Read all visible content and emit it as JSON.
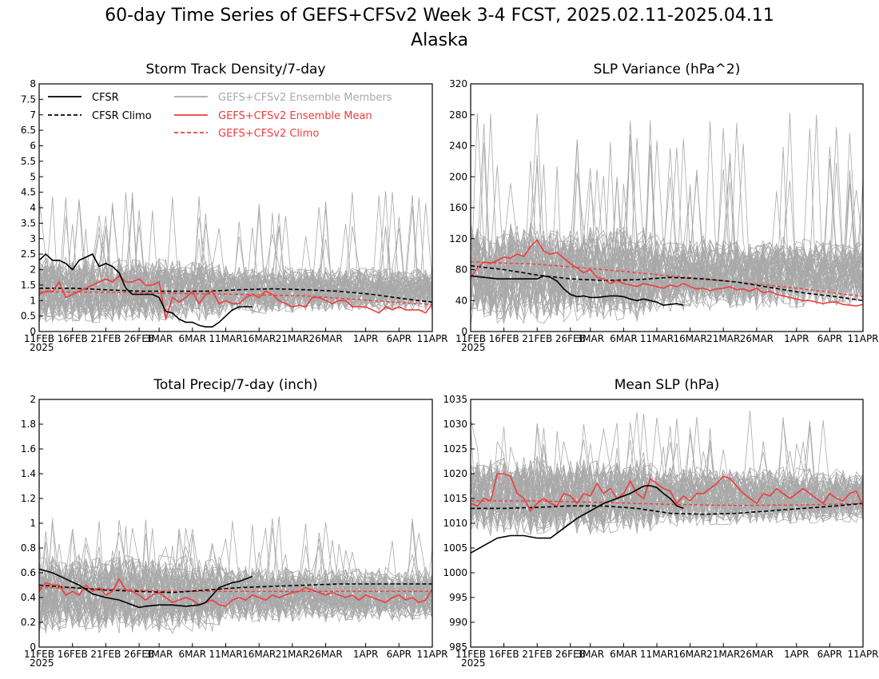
{
  "header": {
    "title": "60-day Time Series of GEFS+CFSv2 Week 3-4 FCST, 2025.02.11-2025.04.11",
    "subtitle": "Alaska"
  },
  "legend": {
    "cfsr": "CFSR",
    "cfsr_climo": "CFSR Climo",
    "members": "GEFS+CFSv2 Ensemble Members",
    "ens_mean": "GEFS+CFSv2 Ensemble Mean",
    "gefs_climo": "GEFS+CFSv2 Climo"
  },
  "colors": {
    "cfsr": "#000000",
    "members": "#a9a9a9",
    "ens_mean": "#f03c3c",
    "gefs_climo": "#f03c3c"
  },
  "x_ticks": [
    "11FEB",
    "16FEB",
    "21FEB",
    "26FEB",
    "3MAR",
    "6MAR",
    "11MAR",
    "16MAR",
    "21MAR",
    "26MAR",
    "1APR",
    "6APR",
    "11APR"
  ],
  "x_tick_days": [
    0,
    5,
    10,
    15,
    18,
    23,
    28,
    33,
    38,
    43,
    49,
    54,
    59
  ],
  "x_year": "2025",
  "chart_data": [
    {
      "type": "line",
      "title": "Storm Track Density/7-day",
      "ylim": [
        0,
        8
      ],
      "yticks": [
        "0",
        "0.5",
        "1",
        "1.5",
        "2",
        "2.5",
        "3",
        "3.5",
        "4",
        "4.5",
        "5",
        "5.5",
        "6",
        "6.5",
        "7",
        "7.5",
        "8"
      ],
      "members_band": {
        "center": 1.35,
        "spread": 0.65,
        "peak": 4.6
      },
      "series": [
        {
          "name": "CFSR",
          "x": [
            0,
            1,
            2,
            3,
            4,
            5,
            6,
            7,
            8,
            9,
            10,
            11,
            12,
            13,
            14,
            15,
            16,
            17,
            18,
            19,
            20,
            21,
            22,
            23,
            24,
            25,
            26,
            27,
            28,
            29,
            30,
            31,
            32
          ],
          "values": [
            2.3,
            2.5,
            2.3,
            2.3,
            2.2,
            2.0,
            2.3,
            2.4,
            2.5,
            2.1,
            2.2,
            2.1,
            1.9,
            1.4,
            1.2,
            1.2,
            1.2,
            1.2,
            1.1,
            0.65,
            0.6,
            0.4,
            0.3,
            0.3,
            0.2,
            0.15,
            0.15,
            0.3,
            0.5,
            0.7,
            0.8,
            0.8,
            0.8
          ]
        },
        {
          "name": "CFSR Climo",
          "x": [
            0,
            5,
            10,
            15,
            20,
            25,
            30,
            35,
            40,
            45,
            50,
            55,
            59
          ],
          "values": [
            1.4,
            1.4,
            1.35,
            1.3,
            1.3,
            1.3,
            1.35,
            1.38,
            1.35,
            1.3,
            1.2,
            1.05,
            0.95
          ]
        },
        {
          "name": "GEFS+CFSv2 Ensemble Mean",
          "x": [
            0,
            1,
            2,
            3,
            4,
            5,
            6,
            7,
            8,
            9,
            10,
            11,
            12,
            13,
            14,
            15,
            16,
            17,
            18,
            19,
            20,
            21,
            22,
            23,
            24,
            25,
            26,
            27,
            28,
            29,
            30,
            31,
            32,
            33,
            34,
            35,
            36,
            37,
            38,
            39,
            40,
            41,
            42,
            43,
            44,
            45,
            46,
            47,
            48,
            49,
            50,
            51,
            52,
            53,
            54,
            55,
            56,
            57,
            58,
            59
          ],
          "values": [
            1.2,
            1.3,
            1.3,
            1.6,
            1.1,
            1.2,
            1.3,
            1.4,
            1.5,
            1.6,
            1.7,
            1.6,
            1.8,
            1.6,
            1.6,
            1.7,
            1.5,
            1.5,
            1.6,
            0.4,
            1.1,
            0.95,
            1.1,
            1.3,
            0.9,
            1.2,
            1.3,
            0.9,
            1.0,
            0.9,
            0.9,
            1.1,
            1.2,
            1.1,
            1.3,
            1.2,
            1.0,
            0.9,
            0.8,
            0.85,
            0.8,
            1.1,
            1.1,
            1.0,
            0.9,
            1.0,
            1.0,
            0.8,
            0.8,
            0.8,
            0.7,
            0.6,
            0.8,
            0.7,
            0.8,
            0.7,
            0.7,
            0.7,
            0.6,
            0.9
          ]
        },
        {
          "name": "GEFS+CFSv2 Climo",
          "x": [
            0,
            10,
            20,
            30,
            40,
            50,
            59
          ],
          "values": [
            1.28,
            1.27,
            1.23,
            1.2,
            1.15,
            1.0,
            0.87
          ]
        }
      ]
    },
    {
      "type": "line",
      "title": "SLP Variance (hPa^2)",
      "ylim": [
        0,
        320
      ],
      "yticks": [
        "0",
        "40",
        "80",
        "120",
        "160",
        "200",
        "240",
        "280",
        "320"
      ],
      "members_band": {
        "center": 75,
        "spread": 40,
        "peak": 283
      },
      "series": [
        {
          "name": "CFSR",
          "x": [
            0,
            2,
            4,
            6,
            8,
            10,
            11,
            12,
            13,
            14,
            15,
            16,
            17,
            18,
            19,
            20,
            21,
            22,
            23,
            24,
            25,
            26,
            27,
            28,
            29,
            30,
            31,
            32
          ],
          "values": [
            72,
            70,
            68,
            68,
            68,
            68,
            72,
            70,
            65,
            55,
            48,
            45,
            46,
            44,
            44,
            45,
            46,
            46,
            45,
            42,
            40,
            42,
            40,
            38,
            34,
            35,
            36,
            34
          ]
        },
        {
          "name": "CFSR Climo",
          "x": [
            0,
            5,
            10,
            15,
            20,
            25,
            30,
            35,
            40,
            45,
            50,
            55,
            59
          ],
          "values": [
            85,
            80,
            73,
            68,
            66,
            67,
            70,
            68,
            64,
            57,
            50,
            45,
            40
          ]
        },
        {
          "name": "GEFS+CFSv2 Ensemble Mean",
          "x": [
            0,
            1,
            2,
            3,
            4,
            5,
            6,
            7,
            8,
            9,
            10,
            11,
            12,
            13,
            14,
            15,
            16,
            17,
            18,
            19,
            20,
            21,
            22,
            23,
            24,
            25,
            26,
            27,
            28,
            29,
            30,
            31,
            32,
            33,
            34,
            35,
            36,
            37,
            38,
            39,
            40,
            41,
            42,
            43,
            44,
            45,
            46,
            47,
            48,
            49,
            50,
            51,
            52,
            53,
            54,
            55,
            56,
            57,
            58,
            59
          ],
          "values": [
            70,
            82,
            90,
            88,
            92,
            96,
            95,
            100,
            97,
            110,
            118,
            104,
            100,
            102,
            95,
            88,
            82,
            76,
            80,
            70,
            68,
            62,
            66,
            62,
            60,
            58,
            62,
            60,
            58,
            56,
            60,
            58,
            62,
            58,
            55,
            56,
            53,
            55,
            56,
            58,
            54,
            55,
            52,
            56,
            50,
            52,
            48,
            46,
            44,
            42,
            40,
            40,
            38,
            36,
            38,
            38,
            35,
            34,
            33,
            35
          ]
        },
        {
          "name": "GEFS+CFSv2 Climo",
          "x": [
            0,
            10,
            20,
            30,
            40,
            50,
            59
          ],
          "values": [
            90,
            87,
            80,
            72,
            64,
            55,
            45
          ]
        }
      ]
    },
    {
      "type": "line",
      "title": "Total Precip/7-day (inch)",
      "ylim": [
        0,
        2
      ],
      "yticks": [
        "0",
        "0.2",
        "0.4",
        "0.6",
        "0.8",
        "1",
        "1.2",
        "1.4",
        "1.6",
        "1.8",
        "2"
      ],
      "members_band": {
        "center": 0.43,
        "spread": 0.2,
        "peak": 1.06
      },
      "series": [
        {
          "name": "CFSR",
          "x": [
            0,
            2,
            4,
            6,
            8,
            10,
            12,
            14,
            15,
            16,
            18,
            20,
            22,
            24,
            25,
            26,
            27,
            28,
            29,
            30,
            31,
            32
          ],
          "values": [
            0.63,
            0.6,
            0.55,
            0.5,
            0.43,
            0.4,
            0.38,
            0.34,
            0.32,
            0.33,
            0.34,
            0.34,
            0.33,
            0.34,
            0.36,
            0.42,
            0.48,
            0.5,
            0.52,
            0.53,
            0.55,
            0.57
          ]
        },
        {
          "name": "CFSR Climo",
          "x": [
            0,
            5,
            10,
            15,
            20,
            25,
            30,
            35,
            40,
            45,
            50,
            55,
            59
          ],
          "values": [
            0.5,
            0.48,
            0.46,
            0.45,
            0.44,
            0.46,
            0.48,
            0.49,
            0.5,
            0.51,
            0.51,
            0.51,
            0.51
          ]
        },
        {
          "name": "GEFS+CFSv2 Ensemble Mean",
          "x": [
            0,
            1,
            2,
            3,
            4,
            5,
            6,
            7,
            8,
            9,
            10,
            11,
            12,
            13,
            14,
            15,
            16,
            17,
            18,
            19,
            20,
            21,
            22,
            23,
            24,
            25,
            26,
            27,
            28,
            29,
            30,
            31,
            32,
            33,
            34,
            35,
            36,
            37,
            38,
            39,
            40,
            41,
            42,
            43,
            44,
            45,
            46,
            47,
            48,
            49,
            50,
            51,
            52,
            53,
            54,
            55,
            56,
            57,
            58,
            59
          ],
          "values": [
            0.45,
            0.52,
            0.5,
            0.5,
            0.42,
            0.45,
            0.42,
            0.5,
            0.45,
            0.48,
            0.42,
            0.45,
            0.55,
            0.46,
            0.45,
            0.42,
            0.38,
            0.42,
            0.44,
            0.4,
            0.36,
            0.38,
            0.4,
            0.38,
            0.34,
            0.36,
            0.38,
            0.34,
            0.33,
            0.38,
            0.4,
            0.38,
            0.42,
            0.4,
            0.38,
            0.42,
            0.4,
            0.42,
            0.44,
            0.45,
            0.48,
            0.46,
            0.44,
            0.42,
            0.44,
            0.42,
            0.4,
            0.42,
            0.38,
            0.42,
            0.4,
            0.38,
            0.36,
            0.4,
            0.42,
            0.38,
            0.4,
            0.36,
            0.38,
            0.47
          ]
        },
        {
          "name": "GEFS+CFSv2 Climo",
          "x": [
            0,
            10,
            20,
            30,
            40,
            50,
            59
          ],
          "values": [
            0.48,
            0.47,
            0.45,
            0.45,
            0.45,
            0.45,
            0.45
          ]
        }
      ]
    },
    {
      "type": "line",
      "title": "Mean SLP (hPa)",
      "ylim": [
        985,
        1035
      ],
      "yticks": [
        "985",
        "990",
        "995",
        "1000",
        "1005",
        "1010",
        "1015",
        "1020",
        "1025",
        "1030",
        "1035"
      ],
      "members_band": {
        "center": 1015.5,
        "spread": 5,
        "peak": 1033
      },
      "series": [
        {
          "name": "CFSR",
          "x": [
            0,
            2,
            4,
            6,
            8,
            10,
            12,
            14,
            16,
            18,
            20,
            22,
            24,
            26,
            27,
            28,
            29,
            30,
            31,
            32
          ],
          "values": [
            1004,
            1005.5,
            1007,
            1007.5,
            1007.5,
            1007,
            1007,
            1009,
            1011,
            1012.5,
            1014,
            1015,
            1016,
            1017.5,
            1017.6,
            1017.2,
            1016,
            1015,
            1013.5,
            1013
          ]
        },
        {
          "name": "CFSR Climo",
          "x": [
            0,
            5,
            10,
            15,
            20,
            25,
            30,
            35,
            40,
            45,
            50,
            55,
            59
          ],
          "values": [
            1013,
            1013,
            1013.2,
            1013.5,
            1013.5,
            1013,
            1012,
            1011.8,
            1012,
            1012.5,
            1013,
            1013.5,
            1014
          ]
        },
        {
          "name": "GEFS+CFSv2 Ensemble Mean",
          "x": [
            0,
            1,
            2,
            3,
            4,
            5,
            6,
            7,
            8,
            9,
            10,
            11,
            12,
            13,
            14,
            15,
            16,
            17,
            18,
            19,
            20,
            21,
            22,
            23,
            24,
            25,
            26,
            27,
            28,
            29,
            30,
            31,
            32,
            33,
            34,
            35,
            36,
            37,
            38,
            39,
            40,
            41,
            42,
            43,
            44,
            45,
            46,
            47,
            48,
            49,
            50,
            51,
            52,
            53,
            54,
            55,
            56,
            57,
            58,
            59
          ],
          "values": [
            1014,
            1013.5,
            1015,
            1014.5,
            1020,
            1020,
            1019.5,
            1016,
            1015,
            1012.5,
            1014,
            1015,
            1014,
            1013.5,
            1016,
            1015.5,
            1014,
            1016,
            1015.5,
            1018,
            1016,
            1017,
            1015,
            1016,
            1018.5,
            1016,
            1015,
            1019,
            1018,
            1017,
            1016.5,
            1014,
            1015.5,
            1014.5,
            1016,
            1016,
            1017,
            1018,
            1019.5,
            1019,
            1017.5,
            1016,
            1015,
            1014,
            1016,
            1015.5,
            1017,
            1016,
            1015,
            1016,
            1017,
            1016,
            1015,
            1014,
            1016,
            1015,
            1014.5,
            1016,
            1016.5,
            1013.5
          ]
        },
        {
          "name": "GEFS+CFSv2 Climo",
          "x": [
            0,
            10,
            20,
            30,
            40,
            50,
            59
          ],
          "values": [
            1014.5,
            1014.5,
            1014.2,
            1013.8,
            1013.6,
            1013.7,
            1014
          ]
        }
      ]
    }
  ]
}
